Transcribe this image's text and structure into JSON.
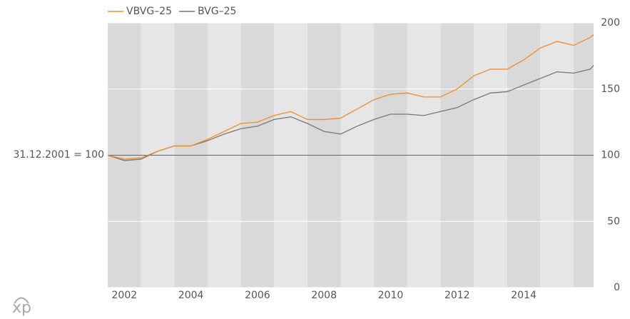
{
  "chart_data": {
    "type": "line",
    "annotation": "31.12.2001 = 100",
    "baseline": 100,
    "logo": "xp",
    "x": [
      2002,
      2002.5,
      2003,
      2003.5,
      2004,
      2004.5,
      2005,
      2005.5,
      2006,
      2006.5,
      2007,
      2007.5,
      2008,
      2008.5,
      2009,
      2009.5,
      2010,
      2010.5,
      2011,
      2011.5,
      2012,
      2012.5,
      2013,
      2013.5,
      2014,
      2014.5,
      2015,
      2015.5,
      2016,
      2016.5,
      2016.6
    ],
    "series": [
      {
        "name": "VBVG–25",
        "color": "#f28c28",
        "values": [
          100,
          97,
          98,
          103,
          107,
          107,
          112,
          118,
          124,
          125,
          130,
          133,
          127,
          127,
          128,
          135,
          142,
          146,
          147,
          144,
          144,
          150,
          160,
          165,
          165,
          172,
          181,
          186,
          183,
          189,
          191
        ]
      },
      {
        "name": "BVG–25",
        "color": "#777777",
        "values": [
          100,
          96,
          97,
          103,
          107,
          107,
          111,
          116,
          120,
          122,
          127,
          129,
          124,
          118,
          116,
          122,
          127,
          131,
          131,
          130,
          133,
          136,
          142,
          147,
          148,
          153,
          158,
          163,
          162,
          165,
          168
        ]
      }
    ],
    "xlim": [
      2002,
      2016.6
    ],
    "xticks": [
      {
        "value": 2002.5,
        "label": "2002"
      },
      {
        "value": 2004.5,
        "label": "2004"
      },
      {
        "value": 2006.5,
        "label": "2006"
      },
      {
        "value": 2008.5,
        "label": "2008"
      },
      {
        "value": 2010.5,
        "label": "2010"
      },
      {
        "value": 2012.5,
        "label": "2012"
      },
      {
        "value": 2014.5,
        "label": "2014"
      }
    ],
    "ylim": [
      0,
      200
    ],
    "yticks": [
      0,
      50,
      100,
      150,
      200
    ],
    "grid": true
  }
}
